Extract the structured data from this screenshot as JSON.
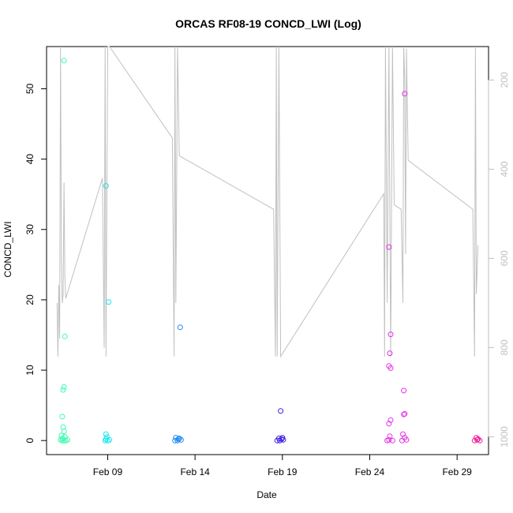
{
  "chart_data": {
    "type": "scatter",
    "title": "ORCAS RF08-19 CONCD_LWI (Log)",
    "xlabel": "Date",
    "ylabel": "CONCD_LWI",
    "x_ticks": [
      "Feb 09",
      "Feb 14",
      "Feb 19",
      "Feb 24",
      "Feb 29"
    ],
    "x_tick_days": [
      9,
      14,
      19,
      24,
      29
    ],
    "xlim_days": [
      5.5,
      30.8
    ],
    "y_ticks": [
      0,
      10,
      20,
      30,
      40,
      50
    ],
    "ylim": [
      -2,
      56
    ],
    "y2_ticks": [
      200,
      400,
      600,
      800,
      1000
    ],
    "y2lim_reversed": [
      1040,
      125
    ],
    "grid": false,
    "series": [
      {
        "color": "#3dfbb0",
        "points": [
          [
            6.5,
            54
          ],
          [
            6.55,
            14.8
          ],
          [
            6.5,
            7.6
          ],
          [
            6.45,
            7.2
          ],
          [
            6.4,
            3.4
          ],
          [
            6.45,
            1.9
          ],
          [
            6.5,
            1.3
          ],
          [
            6.35,
            0.7
          ],
          [
            6.4,
            0.3
          ],
          [
            6.3,
            0.1
          ],
          [
            6.5,
            0
          ],
          [
            6.6,
            0
          ],
          [
            6.7,
            0.1
          ],
          [
            6.4,
            0
          ],
          [
            6.55,
            0.5
          ]
        ]
      },
      {
        "color": "#1ee6ee",
        "points": [
          [
            8.9,
            36.2
          ],
          [
            9.05,
            19.7
          ],
          [
            8.9,
            0.9
          ],
          [
            8.95,
            0.5
          ],
          [
            8.9,
            0.2
          ],
          [
            8.85,
            0
          ],
          [
            9.0,
            0
          ],
          [
            9.1,
            0.1
          ]
        ]
      },
      {
        "color": "#1e88f0",
        "points": [
          [
            13.15,
            16.1
          ],
          [
            12.9,
            0.4
          ],
          [
            13.1,
            0.3
          ],
          [
            12.85,
            0
          ],
          [
            13.0,
            0
          ],
          [
            13.2,
            0.1
          ],
          [
            13.05,
            0.2
          ]
        ]
      },
      {
        "color": "#3a1ee6",
        "points": [
          [
            18.9,
            4.2
          ],
          [
            18.8,
            0.3
          ],
          [
            19.0,
            0.4
          ],
          [
            18.7,
            0
          ],
          [
            18.85,
            0
          ],
          [
            19.05,
            0.1
          ],
          [
            18.95,
            0.2
          ]
        ]
      },
      {
        "color": "#e632e6",
        "points": [
          [
            25.1,
            27.5
          ],
          [
            25.2,
            15.1
          ],
          [
            25.15,
            12.4
          ],
          [
            25.1,
            10.6
          ],
          [
            25.2,
            10.3
          ],
          [
            25.2,
            2.9
          ],
          [
            25.1,
            2.4
          ],
          [
            25.15,
            0.6
          ],
          [
            25.0,
            0
          ],
          [
            25.1,
            0.1
          ],
          [
            25.3,
            0
          ],
          [
            26.0,
            49.3
          ],
          [
            25.95,
            7.1
          ],
          [
            26.0,
            3.8
          ],
          [
            25.95,
            3.7
          ],
          [
            25.9,
            0.9
          ],
          [
            26.0,
            0.4
          ],
          [
            25.85,
            0
          ],
          [
            26.1,
            0.1
          ]
        ]
      },
      {
        "color": "#ee1e96",
        "points": [
          [
            30.1,
            0.4
          ],
          [
            30.2,
            0.2
          ],
          [
            30.0,
            0
          ],
          [
            30.15,
            0.1
          ],
          [
            30.3,
            0
          ]
        ]
      }
    ],
    "pressure_line": {
      "color": "#c0c0c0",
      "points": [
        [
          6.1,
          700
        ],
        [
          6.15,
          820
        ],
        [
          6.2,
          660
        ],
        [
          6.25,
          780
        ],
        [
          6.3,
          125
        ],
        [
          6.35,
          600
        ],
        [
          6.4,
          700
        ],
        [
          6.45,
          680
        ],
        [
          6.5,
          430
        ],
        [
          6.55,
          640
        ],
        [
          6.6,
          690
        ],
        [
          8.7,
          420
        ],
        [
          8.8,
          800
        ],
        [
          8.85,
          125
        ],
        [
          8.9,
          820
        ],
        [
          9.0,
          125
        ],
        [
          9.1,
          125
        ],
        [
          12.7,
          330
        ],
        [
          12.8,
          820
        ],
        [
          12.85,
          125
        ],
        [
          12.9,
          700
        ],
        [
          13.0,
          125
        ],
        [
          13.1,
          370
        ],
        [
          18.5,
          490
        ],
        [
          18.6,
          820
        ],
        [
          18.65,
          125
        ],
        [
          18.7,
          820
        ],
        [
          18.8,
          125
        ],
        [
          18.9,
          820
        ],
        [
          24.8,
          455
        ],
        [
          24.85,
          820
        ],
        [
          24.9,
          125
        ],
        [
          25.0,
          700
        ],
        [
          25.1,
          125
        ],
        [
          25.2,
          820
        ],
        [
          25.3,
          125
        ],
        [
          25.4,
          480
        ],
        [
          25.8,
          490
        ],
        [
          25.9,
          700
        ],
        [
          25.95,
          125
        ],
        [
          26.0,
          200
        ],
        [
          26.05,
          590
        ],
        [
          26.1,
          130
        ],
        [
          26.2,
          380
        ],
        [
          29.9,
          490
        ],
        [
          30.0,
          820
        ],
        [
          30.05,
          125
        ],
        [
          30.1,
          680
        ],
        [
          30.2,
          570
        ]
      ]
    }
  }
}
